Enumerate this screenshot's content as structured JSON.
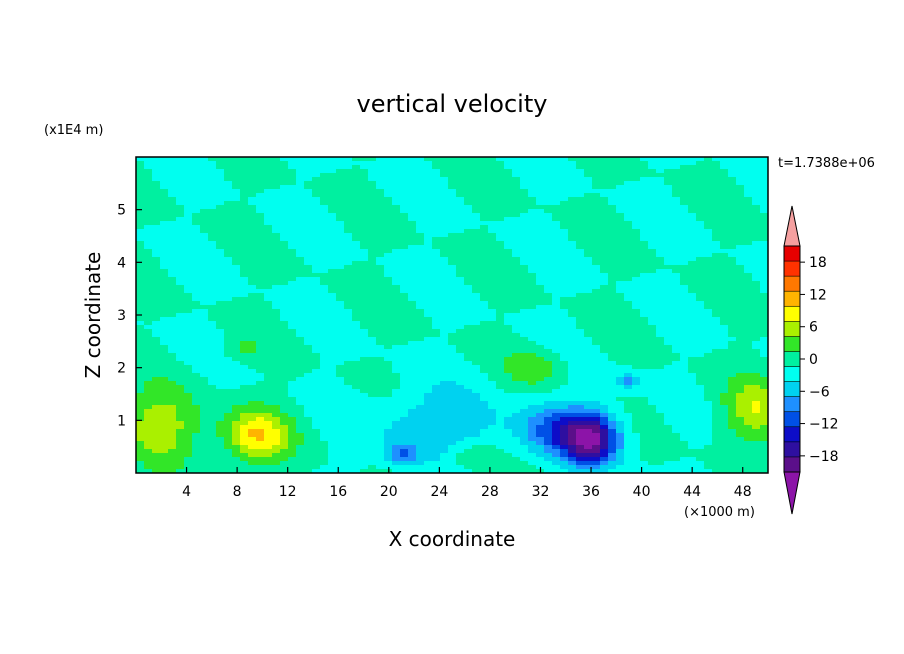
{
  "chart_data": {
    "type": "heatmap",
    "title": "vertical velocity",
    "xlabel": "X coordinate",
    "ylabel": "Z coordinate",
    "x_unit": "(×1000 m)",
    "y_unit": "(x1E4 m)",
    "time_label": "t=1.7388e+06",
    "xlim": [
      0,
      50
    ],
    "ylim": [
      0,
      6
    ],
    "x_ticks": [
      4,
      8,
      12,
      16,
      20,
      24,
      28,
      32,
      36,
      40,
      44,
      48
    ],
    "y_ticks": [
      1,
      2,
      3,
      4,
      5
    ],
    "colorbar": {
      "levels": [
        -21,
        -18,
        -15,
        -12,
        -9,
        -6,
        -3,
        0,
        3,
        6,
        9,
        12,
        15,
        18,
        21
      ],
      "labels": [
        -18,
        -12,
        -6,
        0,
        6,
        12,
        18
      ],
      "colors": [
        "#5b0f8a",
        "#2e0fa0",
        "#0d0dc8",
        "#0050e6",
        "#1e90ff",
        "#00d2f0",
        "#00fff0",
        "#00f0a0",
        "#32e628",
        "#aaf000",
        "#ffff00",
        "#ffb400",
        "#ff7800",
        "#ff3200",
        "#e60000"
      ],
      "under_color": "#8c14a8",
      "over_color": "#f5a0a0"
    },
    "background_value": 0,
    "features": [
      {
        "kind": "updraft",
        "x": 9.5,
        "z": 0.7,
        "peak": 12,
        "sx": 2.6,
        "sz": 0.5
      },
      {
        "kind": "updraft",
        "x": 2.0,
        "z": 0.9,
        "peak": 8,
        "sx": 3.2,
        "sz": 0.7
      },
      {
        "kind": "updraft",
        "x": 49.0,
        "z": 1.2,
        "peak": 8,
        "sx": 2.5,
        "sz": 0.6
      },
      {
        "kind": "updraft",
        "x": 26.5,
        "z": 0.3,
        "peak": 5,
        "sx": 2.0,
        "sz": 0.3
      },
      {
        "kind": "updraft",
        "x": 31.5,
        "z": 2.0,
        "peak": 5,
        "sx": 2.2,
        "sz": 0.35
      },
      {
        "kind": "updraft",
        "x": 8.5,
        "z": 2.35,
        "peak": 4,
        "sx": 1.2,
        "sz": 0.2
      },
      {
        "kind": "downdraft",
        "x": 36.0,
        "z": 0.65,
        "peak": -20,
        "sx": 2.2,
        "sz": 0.5
      },
      {
        "kind": "downdraft",
        "x": 33.0,
        "z": 0.8,
        "peak": -9,
        "sx": 2.8,
        "sz": 0.5
      },
      {
        "kind": "downdraft",
        "x": 24.0,
        "z": 0.9,
        "peak": -6,
        "sx": 5.0,
        "sz": 0.7
      },
      {
        "kind": "downdraft",
        "x": 21.0,
        "z": 0.35,
        "peak": -8,
        "sx": 1.3,
        "sz": 0.2
      },
      {
        "kind": "downdraft",
        "x": 39.0,
        "z": 1.75,
        "peak": -7,
        "sx": 1.0,
        "sz": 0.15
      }
    ]
  }
}
